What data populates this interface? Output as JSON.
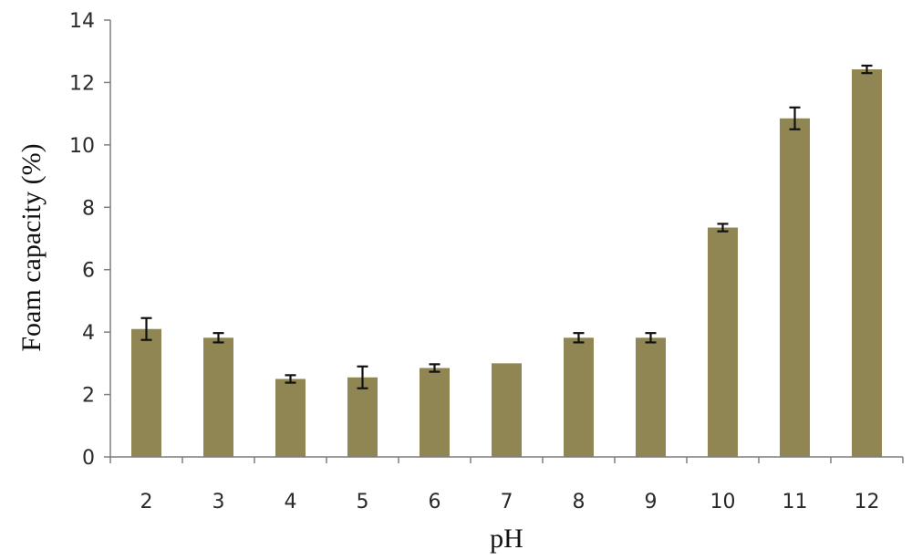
{
  "chart_data": {
    "type": "bar",
    "title": "",
    "xlabel": "pH",
    "ylabel": "Foam capacity (%)",
    "categories": [
      "2",
      "3",
      "4",
      "5",
      "6",
      "7",
      "8",
      "9",
      "10",
      "11",
      "12"
    ],
    "values": [
      4.1,
      3.82,
      2.5,
      2.55,
      2.85,
      3.0,
      3.82,
      3.82,
      7.35,
      10.85,
      12.42
    ],
    "errors": [
      0.35,
      0.15,
      0.12,
      0.35,
      0.12,
      0.0,
      0.15,
      0.15,
      0.12,
      0.35,
      0.12
    ],
    "ylim": [
      0,
      14
    ],
    "yticks": [
      0,
      2,
      4,
      6,
      8,
      10,
      12,
      14
    ],
    "grid": false,
    "legend": "none",
    "colors": {
      "bar": "#8f8654",
      "error_bar": "#111111",
      "axis": "#7f7f7f"
    }
  }
}
